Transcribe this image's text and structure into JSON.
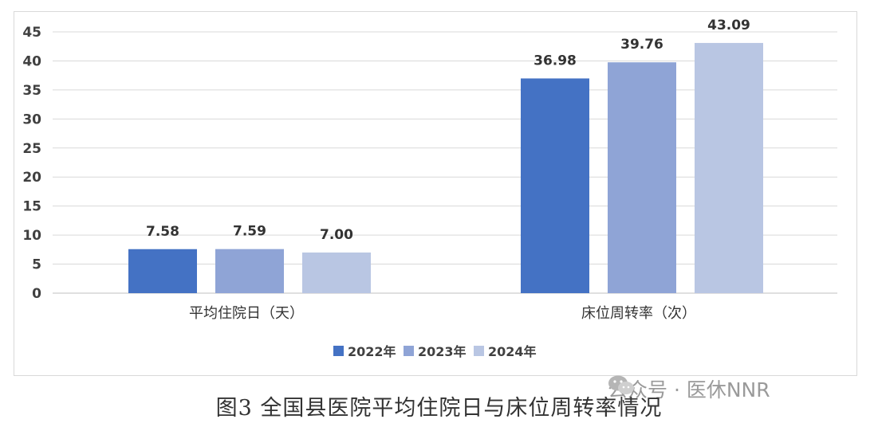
{
  "chart_data": {
    "type": "bar",
    "categories": [
      "平均住院日（天）",
      "床位周转率（次）"
    ],
    "series": [
      {
        "name": "2022年",
        "color": "#4472c4",
        "values": [
          7.58,
          36.98
        ],
        "labels": [
          "7.58",
          "36.98"
        ]
      },
      {
        "name": "2023年",
        "color": "#8fa4d6",
        "values": [
          7.59,
          39.76
        ],
        "labels": [
          "7.59",
          "39.76"
        ]
      },
      {
        "name": "2024年",
        "color": "#b9c6e3",
        "values": [
          7.0,
          43.09
        ],
        "labels": [
          "7.00",
          "43.09"
        ]
      }
    ],
    "ylim": [
      0,
      45
    ],
    "yticks": [
      "0",
      "5",
      "10",
      "15",
      "20",
      "25",
      "30",
      "35",
      "40",
      "45"
    ],
    "grid": true,
    "legend_position": "bottom"
  },
  "caption": "图3 全国县医院平均住院日与床位周转率情况",
  "watermark": {
    "text": "公众号 · 医休NNR",
    "icon": "wechat-icon"
  }
}
